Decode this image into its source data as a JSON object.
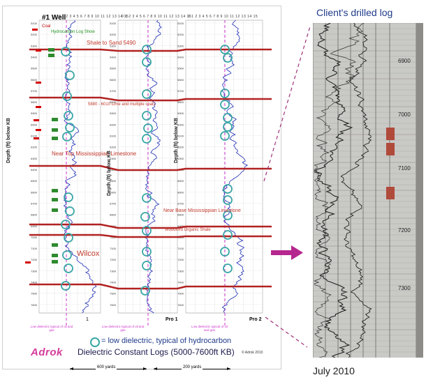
{
  "poster": {
    "well_title": "#1 Well",
    "legend": {
      "coal": "Coal",
      "hydrocarbon_show": "Hydrocarbon Log Show"
    },
    "depth_axis_label": "Depth (ft) below KB",
    "scale_ticks": "0 1 2 3 4 5 6 7 8 9 10 11 12 13 14 15",
    "annotations": {
      "shale_to_sand": "Shale to Sand 5490",
      "line_and_coals": "5880 - 6010 Lime and multiple coals",
      "near_top_miss": "Near Top Mississippian Limestone",
      "near_base_miss": "Near Base Mississippian Limestone",
      "woodford": "Woodford Organic Shale",
      "wilcox": "Wilcox"
    },
    "panels": [
      {
        "label": "1",
        "depths": [
          "5100",
          "5200",
          "5300",
          "5400",
          "5500",
          "5600",
          "5700",
          "5800",
          "5900",
          "6000",
          "6100",
          "6200",
          "6300",
          "6400",
          "6500",
          "6600",
          "6700",
          "6800",
          "6900",
          "7000",
          "7100",
          "7200",
          "7300",
          "7400",
          "7500",
          "7600"
        ]
      },
      {
        "label": "Pro 1",
        "depths": [
          "5100",
          "5200",
          "5300",
          "5400",
          "5500",
          "5600",
          "5700",
          "5800",
          "5900",
          "6000",
          "6100",
          "6200",
          "6300",
          "6400",
          "6500",
          "6600",
          "6700",
          "6800",
          "6900",
          "7000",
          "7100",
          "7200",
          "7300",
          "7400",
          "7500",
          "7600"
        ]
      },
      {
        "label": "Pro 2",
        "depths": [
          "5100",
          "5200",
          "5300",
          "5400",
          "5500",
          "5600",
          "5700",
          "5800",
          "5900",
          "6000",
          "6100",
          "6200",
          "6300",
          "6400",
          "6500",
          "6600",
          "6700",
          "6800",
          "6900",
          "7000",
          "7100",
          "7200",
          "7300",
          "7400",
          "7500",
          "7600"
        ]
      }
    ],
    "footnote": "Low dielectric typical of oil and gas",
    "legend_circle": "= low dielectric, typical of hydrocarbon",
    "logo": "Adrok",
    "main_title": "Dielectric Constant Logs (5000-7600ft KB)",
    "copyright": "© Adrok 2010",
    "distances": {
      "left": "600 yards",
      "right": "200 yards"
    }
  },
  "client_log": {
    "title": "Client's drilled log",
    "depths": [
      "6900",
      "7000",
      "7100",
      "7200",
      "7300"
    ],
    "date": "July 2010"
  },
  "colors": {
    "horizon": "#b22222",
    "annotation": "#c0392b",
    "hc_circle": "#3aa6a6",
    "trace": "#1f2fb5",
    "dashed": "#cc33cc",
    "arrow": "#b5278f",
    "coal_marker": "#d40000",
    "hc_marker": "#2e8b2e",
    "title_blue": "#1f3a8a"
  }
}
